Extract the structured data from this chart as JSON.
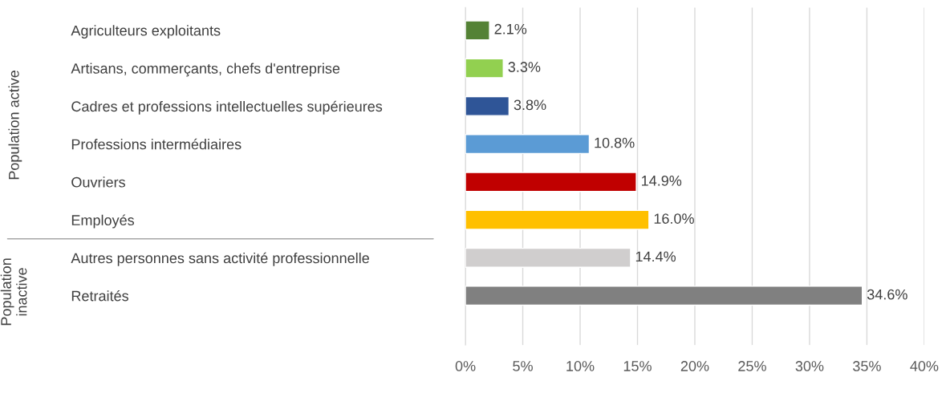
{
  "chart_data": {
    "type": "bar",
    "orientation": "horizontal",
    "categories": [
      "Agriculteurs exploitants",
      "Artisans, commerçants, chefs d'entreprise",
      "Cadres et professions intellectuelles supérieures",
      "Professions intermédiaires",
      "Ouvriers",
      "Employés",
      "Autres personnes sans activité professionnelle",
      "Retraités"
    ],
    "values": [
      2.1,
      3.3,
      3.8,
      10.8,
      14.9,
      16.0,
      14.4,
      34.6
    ],
    "colors": [
      "#548235",
      "#92d050",
      "#2f5597",
      "#5b9bd5",
      "#c00000",
      "#ffc000",
      "#d0cece",
      "#808080"
    ],
    "value_labels": [
      "2.1%",
      "3.3%",
      "3.8%",
      "10.8%",
      "14.9%",
      "16.0%",
      "14.4%",
      "34.6%"
    ],
    "xlim": [
      0,
      40
    ],
    "xticks": [
      {
        "value": 0,
        "label": "0%"
      },
      {
        "value": 5,
        "label": "5%"
      },
      {
        "value": 10,
        "label": "10%"
      },
      {
        "value": 15,
        "label": "15%"
      },
      {
        "value": 20,
        "label": "20%"
      },
      {
        "value": 25,
        "label": "25%"
      },
      {
        "value": 30,
        "label": "30%"
      },
      {
        "value": 35,
        "label": "35%"
      },
      {
        "value": 40,
        "label": "40%"
      }
    ],
    "grid": "x",
    "annotations": [
      "Population active",
      "Population\ninactive"
    ]
  }
}
